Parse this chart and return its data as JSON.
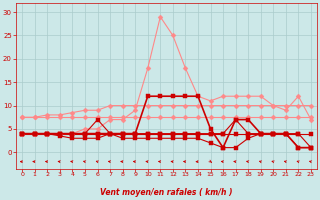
{
  "x": [
    0,
    1,
    2,
    3,
    4,
    5,
    6,
    7,
    8,
    9,
    10,
    11,
    12,
    13,
    14,
    15,
    16,
    17,
    18,
    19,
    20,
    21,
    22,
    23
  ],
  "lines": [
    {
      "y": [
        7.5,
        7.5,
        7.5,
        7.5,
        7.5,
        7.5,
        7.5,
        7.5,
        7.5,
        7.5,
        7.5,
        7.5,
        7.5,
        7.5,
        7.5,
        7.5,
        7.5,
        7.5,
        7.5,
        7.5,
        7.5,
        7.5,
        7.5,
        7.5
      ],
      "color": "#ff8888",
      "marker": "D",
      "lw": 0.8,
      "ms": 2.5
    },
    {
      "y": [
        4,
        4,
        4,
        4,
        4,
        4,
        4,
        4,
        4,
        4,
        4,
        4,
        4,
        4,
        4,
        4,
        4,
        4,
        4,
        4,
        4,
        4,
        4,
        4
      ],
      "color": "#cc0000",
      "marker": "s",
      "lw": 0.8,
      "ms": 2.5
    },
    {
      "y": [
        7.5,
        7.5,
        8,
        8,
        8.5,
        9,
        9,
        10,
        10,
        10,
        10,
        10,
        10,
        10,
        10,
        10,
        10,
        10,
        10,
        10,
        10,
        10,
        10,
        10
      ],
      "color": "#ff8888",
      "marker": "D",
      "lw": 0.8,
      "ms": 2.5
    },
    {
      "y": [
        4,
        4,
        4,
        4,
        4,
        5,
        5,
        7,
        7,
        9,
        18,
        29,
        25,
        18,
        12,
        11,
        12,
        12,
        12,
        12,
        10,
        9,
        12,
        7
      ],
      "color": "#ff8888",
      "marker": "D",
      "lw": 0.8,
      "ms": 2.5
    },
    {
      "y": [
        4,
        4,
        4,
        4,
        4,
        4,
        4,
        4,
        4,
        4,
        12,
        12,
        12,
        12,
        12,
        5,
        1,
        7,
        7,
        4,
        4,
        4,
        1,
        1
      ],
      "color": "#cc0000",
      "marker": "s",
      "lw": 1.2,
      "ms": 3.5
    },
    {
      "y": [
        4,
        4,
        4,
        3.5,
        3,
        3,
        3,
        4,
        3,
        3,
        3,
        3,
        3,
        3,
        3,
        2,
        1,
        1,
        3,
        4,
        4,
        4,
        1,
        1
      ],
      "color": "#cc0000",
      "marker": "s",
      "lw": 0.8,
      "ms": 2.5
    },
    {
      "y": [
        4,
        4,
        4,
        4,
        4,
        4,
        7,
        4,
        4,
        4,
        4,
        4,
        4,
        4,
        4,
        4,
        4,
        7,
        4,
        4,
        4,
        4,
        4,
        1
      ],
      "color": "#cc0000",
      "marker": "s",
      "lw": 0.8,
      "ms": 2.5
    }
  ],
  "xlabel": "Vent moyen/en rafales ( km/h )",
  "xlim": [
    -0.5,
    23.5
  ],
  "ylim": [
    -3.5,
    32
  ],
  "yticks": [
    0,
    5,
    10,
    15,
    20,
    25,
    30
  ],
  "xticks": [
    0,
    1,
    2,
    3,
    4,
    5,
    6,
    7,
    8,
    9,
    10,
    11,
    12,
    13,
    14,
    15,
    16,
    17,
    18,
    19,
    20,
    21,
    22,
    23
  ],
  "bg_color": "#cce8e8",
  "grid_color": "#aacccc",
  "text_color": "#cc0000",
  "arrow_angles_deg": [
    270,
    260,
    255,
    250,
    245,
    235,
    230,
    245,
    255,
    255,
    250,
    250,
    250,
    255,
    275,
    30,
    250,
    250,
    240,
    230,
    230,
    235,
    230,
    235
  ]
}
